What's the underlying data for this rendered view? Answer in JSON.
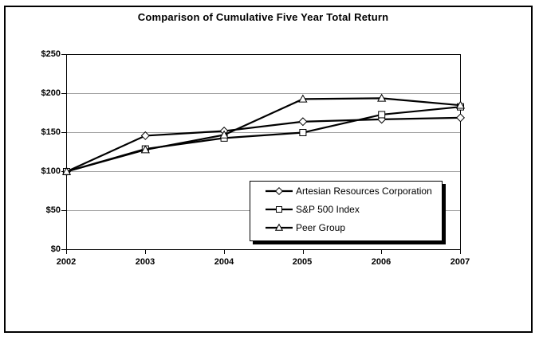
{
  "chart_data": {
    "type": "line",
    "title": "Comparison of Cumulative Five Year Total Return",
    "categories": [
      "2002",
      "2003",
      "2004",
      "2005",
      "2006",
      "2007"
    ],
    "y_tick_labels": [
      "$250",
      "$200",
      "$150",
      "$100",
      "$50",
      "$0"
    ],
    "ylim": [
      0,
      250
    ],
    "xlabel": "",
    "ylabel": "",
    "grid": true,
    "gridline_color": "#a0a0a0",
    "line_color": "#000000",
    "marker_fill": "#ffffff",
    "legend_position": "inside-bottom-right",
    "legend_shadow": true,
    "series": [
      {
        "name": "Artesian Resources Corporation",
        "marker": "diamond",
        "values": [
          100,
          146,
          152,
          164,
          167,
          169
        ]
      },
      {
        "name": "S&P 500 Index",
        "marker": "square",
        "values": [
          100,
          129,
          143,
          150,
          173,
          183
        ]
      },
      {
        "name": "Peer Group",
        "marker": "triangle",
        "values": [
          100,
          128,
          147,
          193,
          194,
          185
        ]
      }
    ]
  }
}
